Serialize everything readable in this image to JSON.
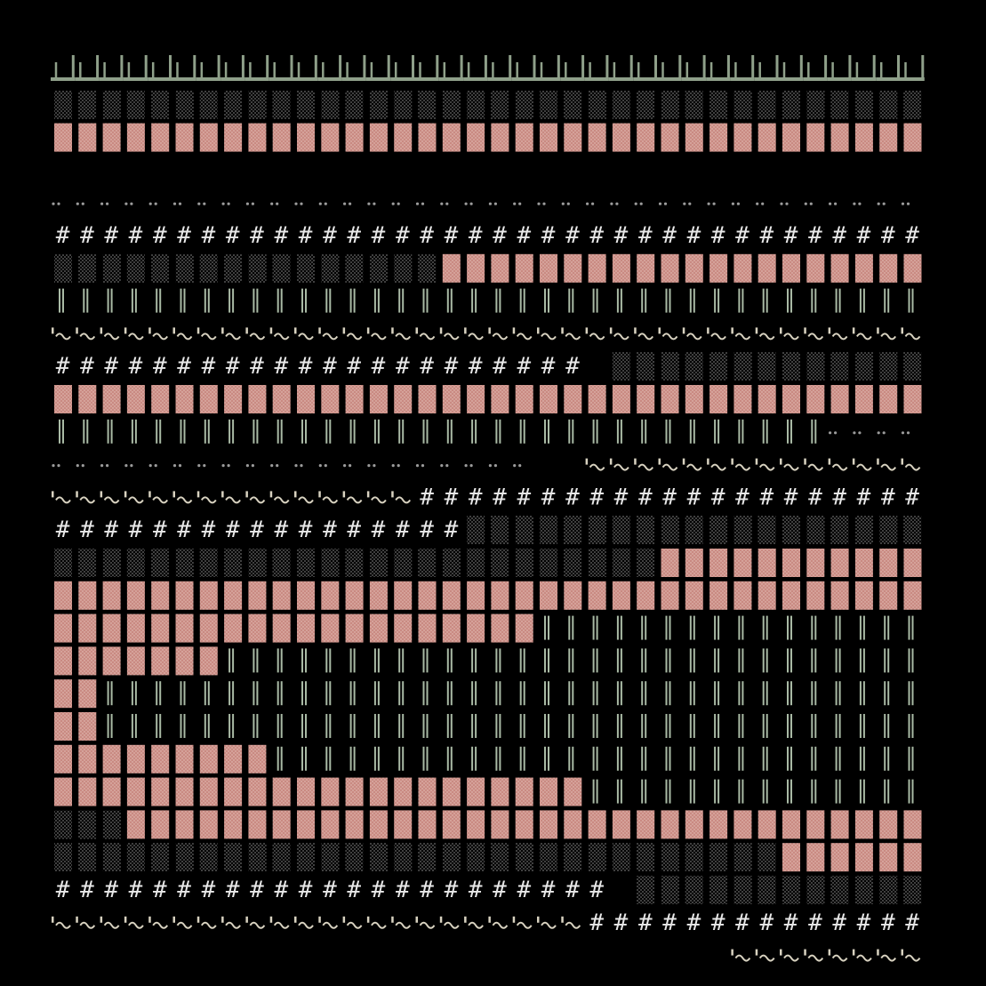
{
  "artwork": {
    "kind": "ascii-art pattern",
    "background_color": "#000000",
    "palette": {
      "fence": "#8fa08a",
      "block": "#c98a82",
      "block_dots": "#e8c7bf",
      "stipple": "#c8c8c8",
      "hash": "#e8e8e8",
      "pipe": "#a9baa5",
      "tilde": "#d8d2c0",
      "dots": "#9b9b9b"
    },
    "columns": 36,
    "rows": [
      {
        "name": "fence-row",
        "segments": [
          {
            "glyph": "fence",
            "count": 36
          }
        ]
      },
      {
        "name": "stipple-row-1",
        "segments": [
          {
            "glyph": "stipple",
            "count": 36
          }
        ]
      },
      {
        "name": "block-row-1",
        "segments": [
          {
            "glyph": "block",
            "count": 36
          }
        ]
      },
      {
        "name": "blank-row-1",
        "segments": []
      },
      {
        "name": "dots-row-1",
        "segments": [
          {
            "glyph": "dots",
            "count": 36
          }
        ]
      },
      {
        "name": "hash-row-1",
        "segments": [
          {
            "glyph": "hash",
            "count": 36
          }
        ]
      },
      {
        "name": "mixed-row-1",
        "segments": [
          {
            "glyph": "stipple",
            "count": 16
          },
          {
            "glyph": "block",
            "count": 20
          }
        ]
      },
      {
        "name": "pipe-row-1",
        "segments": [
          {
            "glyph": "pipe",
            "count": 36
          }
        ]
      },
      {
        "name": "tilde-row-1",
        "segments": [
          {
            "glyph": "tilde",
            "count": 36
          }
        ]
      },
      {
        "name": "mixed-row-2",
        "segments": [
          {
            "glyph": "hash",
            "count": 22
          },
          {
            "glyph": "blank",
            "count": 1
          },
          {
            "glyph": "stipple",
            "count": 13
          }
        ]
      },
      {
        "name": "block-row-2",
        "segments": [
          {
            "glyph": "block",
            "count": 36
          }
        ]
      },
      {
        "name": "mixed-row-3",
        "segments": [
          {
            "glyph": "pipe",
            "count": 32
          },
          {
            "glyph": "dots",
            "count": 4
          }
        ]
      },
      {
        "name": "mixed-row-4",
        "segments": [
          {
            "glyph": "dots",
            "count": 20
          },
          {
            "glyph": "blank",
            "count": 2
          },
          {
            "glyph": "tilde",
            "count": 14
          }
        ]
      },
      {
        "name": "mixed-row-5",
        "segments": [
          {
            "glyph": "tilde",
            "count": 15
          },
          {
            "glyph": "hash",
            "count": 21
          }
        ]
      },
      {
        "name": "mixed-row-6",
        "segments": [
          {
            "glyph": "hash",
            "count": 17
          },
          {
            "glyph": "stipple",
            "count": 19
          }
        ]
      },
      {
        "name": "mixed-row-7",
        "segments": [
          {
            "glyph": "stipple",
            "count": 25
          },
          {
            "glyph": "block",
            "count": 11
          }
        ]
      },
      {
        "name": "block-row-3",
        "segments": [
          {
            "glyph": "block",
            "count": 36
          }
        ]
      },
      {
        "name": "mixed-row-8",
        "segments": [
          {
            "glyph": "block",
            "count": 20
          },
          {
            "glyph": "pipe",
            "count": 16
          }
        ]
      },
      {
        "name": "mixed-row-9",
        "segments": [
          {
            "glyph": "block",
            "count": 7
          },
          {
            "glyph": "pipe",
            "count": 29
          }
        ]
      },
      {
        "name": "mixed-row-10",
        "segments": [
          {
            "glyph": "block",
            "count": 2
          },
          {
            "glyph": "pipe",
            "count": 34
          }
        ]
      },
      {
        "name": "mixed-row-11",
        "segments": [
          {
            "glyph": "block",
            "count": 2
          },
          {
            "glyph": "pipe",
            "count": 34
          }
        ]
      },
      {
        "name": "mixed-row-12",
        "segments": [
          {
            "glyph": "block",
            "count": 9
          },
          {
            "glyph": "pipe",
            "count": 27
          }
        ]
      },
      {
        "name": "mixed-row-13",
        "segments": [
          {
            "glyph": "block",
            "count": 22
          },
          {
            "glyph": "pipe",
            "count": 14
          }
        ]
      },
      {
        "name": "mixed-row-14",
        "segments": [
          {
            "glyph": "stipple",
            "count": 3
          },
          {
            "glyph": "block",
            "count": 33
          }
        ]
      },
      {
        "name": "mixed-row-15",
        "segments": [
          {
            "glyph": "stipple",
            "count": 30
          },
          {
            "glyph": "block",
            "count": 6
          }
        ]
      },
      {
        "name": "mixed-row-16",
        "segments": [
          {
            "glyph": "hash",
            "count": 23
          },
          {
            "glyph": "blank",
            "count": 1
          },
          {
            "glyph": "stipple",
            "count": 12
          }
        ]
      },
      {
        "name": "mixed-row-17",
        "segments": [
          {
            "glyph": "tilde",
            "count": 22
          },
          {
            "glyph": "hash",
            "count": 14
          }
        ]
      },
      {
        "name": "mixed-row-18",
        "segments": [
          {
            "glyph": "blank",
            "count": 28
          },
          {
            "glyph": "tilde",
            "count": 8
          }
        ]
      }
    ]
  }
}
